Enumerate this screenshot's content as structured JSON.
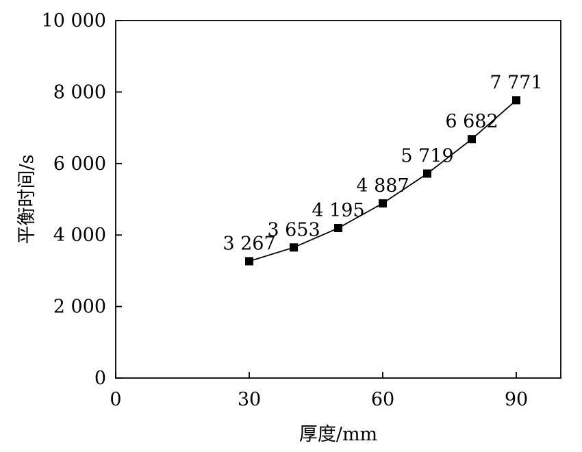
{
  "chart_data": {
    "type": "line",
    "title": "",
    "xlabel": "厚度/mm",
    "ylabel": "平衡时间/s",
    "xlim": [
      0,
      100
    ],
    "ylim": [
      0,
      10000
    ],
    "x_ticks": [
      0,
      30,
      60,
      90
    ],
    "x_tick_labels": [
      "0",
      "30",
      "60",
      "90"
    ],
    "y_ticks": [
      0,
      2000,
      4000,
      6000,
      8000,
      10000
    ],
    "y_tick_labels": [
      "0",
      "2 000",
      "4 000",
      "6 000",
      "8 000",
      "10 000"
    ],
    "grid": false,
    "legend": "none",
    "marker": "square",
    "color": "#000000",
    "series": [
      {
        "x": [
          30,
          40,
          50,
          60,
          70,
          80,
          90
        ],
        "y": [
          3267,
          3653,
          4195,
          4887,
          5719,
          6682,
          7771
        ],
        "labels": [
          "3 267",
          "3 653",
          "4 195",
          "4 887",
          "5 719",
          "6 682",
          "7 771"
        ]
      }
    ]
  }
}
